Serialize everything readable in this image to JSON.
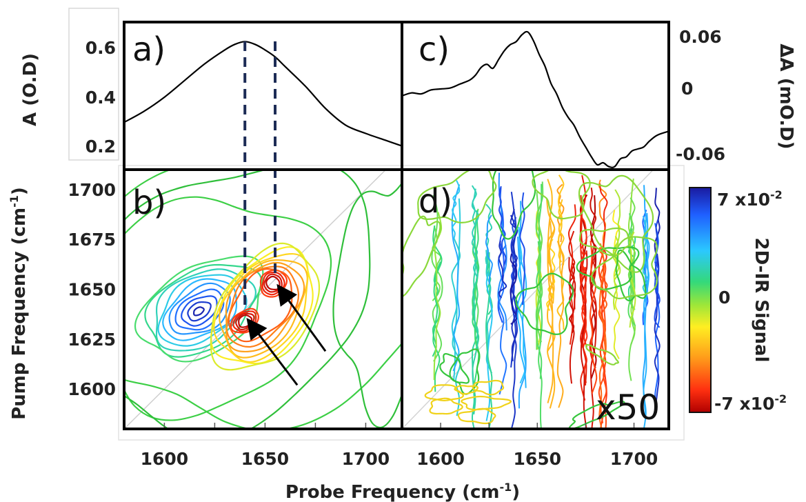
{
  "chart_data": [
    {
      "panel": "a)",
      "type": "line",
      "ylabel": "A (O.D)",
      "yticks": [
        "0.6",
        "0.4",
        "0.2"
      ],
      "ylim": [
        0.15,
        0.68
      ],
      "xlim": [
        1580,
        1718
      ],
      "series": [
        {
          "x": [
            1580,
            1590,
            1600,
            1610,
            1620,
            1630,
            1635,
            1640,
            1645,
            1650,
            1655,
            1660,
            1670,
            1680,
            1690,
            1700,
            1710,
            1718
          ],
          "y": [
            0.32,
            0.36,
            0.41,
            0.47,
            0.53,
            0.58,
            0.6,
            0.61,
            0.6,
            0.58,
            0.555,
            0.52,
            0.45,
            0.37,
            0.31,
            0.28,
            0.255,
            0.235
          ]
        }
      ],
      "guides_x": [
        1640,
        1655
      ]
    },
    {
      "panel": "c)",
      "type": "line",
      "ylabel": "ΔA (mO.D)",
      "yticks": [
        "0.06",
        "0",
        "-0.06"
      ],
      "ylim": [
        -0.075,
        0.075
      ],
      "xlim": [
        1580,
        1718
      ],
      "series": [
        {
          "x": [
            1580,
            1585,
            1590,
            1595,
            1600,
            1605,
            1610,
            1615,
            1618,
            1621,
            1624,
            1627,
            1630,
            1633,
            1636,
            1639,
            1642,
            1645,
            1648,
            1651,
            1654,
            1657,
            1660,
            1663,
            1666,
            1669,
            1672,
            1675,
            1678,
            1681,
            1684,
            1687,
            1690,
            1693,
            1696,
            1699,
            1702,
            1705,
            1708,
            1712,
            1718
          ],
          "y": [
            0.0,
            0.003,
            0.002,
            0.006,
            0.007,
            0.008,
            0.012,
            0.016,
            0.021,
            0.029,
            0.032,
            0.028,
            0.037,
            0.046,
            0.052,
            0.055,
            0.062,
            0.065,
            0.056,
            0.042,
            0.03,
            0.013,
            0.002,
            -0.012,
            -0.022,
            -0.03,
            -0.042,
            -0.052,
            -0.062,
            -0.07,
            -0.068,
            -0.072,
            -0.072,
            -0.064,
            -0.062,
            -0.056,
            -0.054,
            -0.052,
            -0.046,
            -0.04,
            -0.036
          ]
        }
      ]
    },
    {
      "panel": "b)",
      "type": "heatmap",
      "ylabel": "Pump Frequency (cm",
      "ylabel_sup": "-1",
      "ylabel_close": ")",
      "yticks": [
        "1700",
        "1675",
        "1650",
        "1625",
        "1600"
      ],
      "ytick_values": [
        1700,
        1675,
        1650,
        1625,
        1600
      ],
      "xticks": [
        "1600",
        "1650",
        "1700"
      ],
      "xtick_values": [
        1600,
        1650,
        1700
      ],
      "xlim": [
        1580,
        1718
      ],
      "ylim": [
        1580,
        1710
      ],
      "peaks": [
        {
          "x": 1617,
          "y": 1639,
          "sign": "positive"
        },
        {
          "x": 1640,
          "y": 1634,
          "sign": "negative"
        },
        {
          "x": 1654,
          "y": 1653,
          "sign": "negative"
        }
      ],
      "arrows": [
        {
          "from": [
            1666,
            1602
          ],
          "to": [
            1642,
            1634
          ]
        },
        {
          "from": [
            1680,
            1619
          ],
          "to": [
            1657,
            1651
          ]
        }
      ]
    },
    {
      "panel": "d)",
      "type": "heatmap",
      "annotation": "x50",
      "xticks": [
        "1600",
        "1650",
        "1700"
      ],
      "xtick_values": [
        1600,
        1650,
        1700
      ],
      "xlim": [
        1580,
        1718
      ],
      "ylim": [
        1580,
        1710
      ]
    }
  ],
  "colorbar": {
    "label": "2D-IR Signal",
    "max_label": "7 x10",
    "max_sup": "-2",
    "mid_label": "0",
    "min_label": "-7 x10",
    "min_sup": "-2",
    "colors": [
      "#1a1aa0",
      "#1f5fff",
      "#2bc8ff",
      "#34d97a",
      "#9be63a",
      "#ffee22",
      "#ff9a1a",
      "#ff3010",
      "#b00000"
    ]
  },
  "xlabel": {
    "text": "Probe Frequency (cm",
    "sup": "-1",
    "close": ")"
  }
}
